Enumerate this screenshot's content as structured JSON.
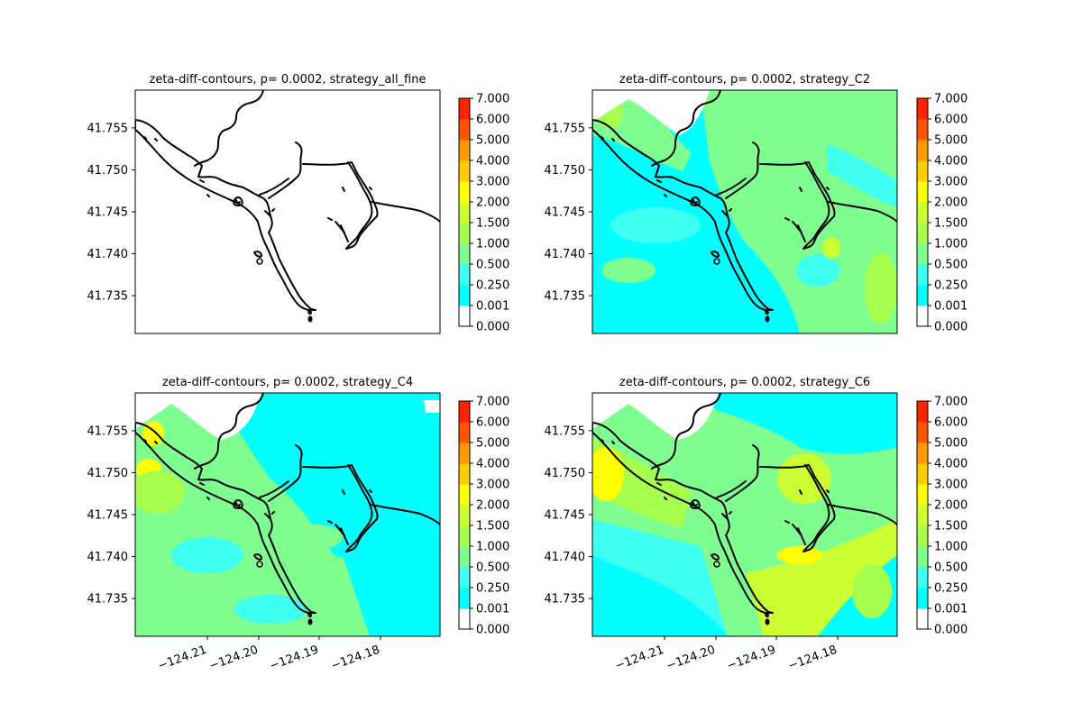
{
  "chart_data": [
    {
      "type": "contour",
      "title": "zeta-diff-contours, p= 0.0002, strategy_all_fine",
      "field": "empty",
      "ylim": [
        41.7305,
        41.7595
      ],
      "y_ticks": [
        "41.755",
        "41.750",
        "41.745",
        "41.740",
        "41.735"
      ],
      "x_ticks": [],
      "colorbar": {
        "levels": [
          "0.000",
          "0.001",
          "0.250",
          "0.500",
          "1.000",
          "1.500",
          "2.000",
          "3.000",
          "4.000",
          "5.000",
          "6.000",
          "7.000"
        ],
        "colors": [
          "#ffffff",
          "#00ffff",
          "#3ffff0",
          "#7fff8f",
          "#a6ff4c",
          "#ccff33",
          "#ffff00",
          "#ffcc00",
          "#ff9900",
          "#ff5500",
          "#ff2200",
          "#ff0000"
        ]
      }
    },
    {
      "type": "contour",
      "title": "zeta-diff-contours, p= 0.0002, strategy_C2",
      "field": "c2",
      "ylim": [
        41.7305,
        41.7595
      ],
      "y_ticks": [
        "41.755",
        "41.750",
        "41.745",
        "41.740",
        "41.735"
      ],
      "x_ticks": [],
      "colorbar": {
        "levels": [
          "0.000",
          "0.001",
          "0.250",
          "0.500",
          "1.000",
          "1.500",
          "2.000",
          "3.000",
          "4.000",
          "5.000",
          "6.000",
          "7.000"
        ],
        "colors": [
          "#ffffff",
          "#00ffff",
          "#3ffff0",
          "#7fff8f",
          "#a6ff4c",
          "#ccff33",
          "#ffff00",
          "#ffcc00",
          "#ff9900",
          "#ff5500",
          "#ff2200",
          "#ff0000"
        ]
      }
    },
    {
      "type": "contour",
      "title": "zeta-diff-contours, p= 0.0002, strategy_C4",
      "field": "c4",
      "ylim": [
        41.7305,
        41.7595
      ],
      "y_ticks": [
        "41.755",
        "41.750",
        "41.745",
        "41.740",
        "41.735"
      ],
      "x_ticks": [
        "−124.21",
        "−124.20",
        "−124.19",
        "−124.18"
      ],
      "colorbar": {
        "levels": [
          "0.000",
          "0.001",
          "0.250",
          "0.500",
          "1.000",
          "1.500",
          "2.000",
          "3.000",
          "4.000",
          "5.000",
          "6.000",
          "7.000"
        ],
        "colors": [
          "#ffffff",
          "#00ffff",
          "#3ffff0",
          "#7fff8f",
          "#a6ff4c",
          "#ccff33",
          "#ffff00",
          "#ffcc00",
          "#ff9900",
          "#ff5500",
          "#ff2200",
          "#ff0000"
        ]
      }
    },
    {
      "type": "contour",
      "title": "zeta-diff-contours, p= 0.0002, strategy_C6",
      "field": "c6",
      "ylim": [
        41.7305,
        41.7595
      ],
      "y_ticks": [
        "41.755",
        "41.750",
        "41.745",
        "41.740",
        "41.735"
      ],
      "x_ticks": [
        "−124.21",
        "−124.20",
        "−124.19",
        "−124.18"
      ],
      "colorbar": {
        "levels": [
          "0.000",
          "0.001",
          "0.250",
          "0.500",
          "1.000",
          "1.500",
          "2.000",
          "3.000",
          "4.000",
          "5.000",
          "6.000",
          "7.000"
        ],
        "colors": [
          "#ffffff",
          "#00ffff",
          "#3ffff0",
          "#7fff8f",
          "#a6ff4c",
          "#ccff33",
          "#ffff00",
          "#ffcc00",
          "#ff9900",
          "#ff5500",
          "#ff2200",
          "#ff0000"
        ]
      }
    }
  ]
}
